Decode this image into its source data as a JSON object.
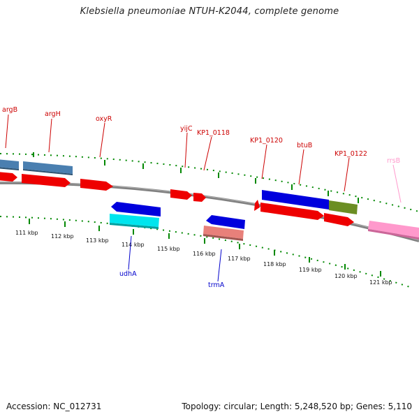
{
  "title": "Klebsiella pneumoniae NTUH-K2044, complete genome",
  "footer": {
    "accession": "Accession: NC_012731",
    "topology": "Topology: circular; Length: 5,248,520 bp; Genes: 5,110"
  },
  "scale": {
    "labels": [
      "111 kbp",
      "112 kbp",
      "113 kbp",
      "114 kbp",
      "115 kbp",
      "116 kbp",
      "117 kbp",
      "118 kbp",
      "119 kbp",
      "120 kbp",
      "121 kbp"
    ]
  },
  "top_gene_labels": [
    {
      "text": "argB",
      "color": "#cc0000"
    },
    {
      "text": "argH",
      "color": "#cc0000"
    },
    {
      "text": "oxyR",
      "color": "#cc0000"
    },
    {
      "text": "yijC",
      "color": "#cc0000"
    },
    {
      "text": "KP1_0118",
      "color": "#cc0000"
    },
    {
      "text": "KP1_0120",
      "color": "#cc0000"
    },
    {
      "text": "btuB",
      "color": "#cc0000"
    },
    {
      "text": "KP1_0122",
      "color": "#cc0000"
    },
    {
      "text": "rrsB",
      "color": "#ff99cc"
    }
  ],
  "bottom_gene_labels": [
    {
      "text": "udhA",
      "color": "#0000cc"
    },
    {
      "text": "trmA",
      "color": "#0000cc"
    }
  ],
  "colors": {
    "forward_cds": "#ee0000",
    "reverse_cds": "#0000dd",
    "steel_blue_feature": "#4a7fb0",
    "cyan_feature": "#00e5ee",
    "salmon_feature": "#e8807a",
    "olive_feature": "#6b8e23",
    "pink_feature": "#ff99cc",
    "backbone": "#808080",
    "tick_dots": "#008800"
  }
}
